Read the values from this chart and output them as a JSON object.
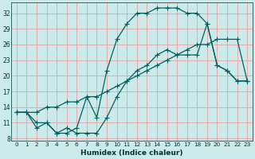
{
  "xlabel": "Humidex (Indice chaleur)",
  "bg_color": "#cceaea",
  "grid_color": "#e8a0a0",
  "line_color": "#006060",
  "xlim": [
    -0.5,
    23.5
  ],
  "ylim": [
    7.5,
    34
  ],
  "xticks": [
    0,
    1,
    2,
    3,
    4,
    5,
    6,
    7,
    8,
    9,
    10,
    11,
    12,
    13,
    14,
    15,
    16,
    17,
    18,
    19,
    20,
    21,
    22,
    23
  ],
  "yticks": [
    8,
    11,
    14,
    17,
    20,
    23,
    26,
    29,
    32
  ],
  "line1_x": [
    0,
    1,
    2,
    3,
    4,
    5,
    6,
    7,
    8,
    9,
    10,
    11,
    12,
    13,
    14,
    15,
    16,
    17,
    18,
    19,
    20,
    21,
    22,
    23
  ],
  "line1_y": [
    13,
    13,
    10,
    11,
    9,
    9,
    10,
    16,
    12,
    21,
    27,
    30,
    32,
    32,
    33,
    33,
    33,
    32,
    32,
    30,
    22,
    21,
    19,
    19
  ],
  "line2_x": [
    0,
    1,
    2,
    3,
    4,
    5,
    6,
    7,
    8,
    9,
    10,
    11,
    12,
    13,
    14,
    15,
    16,
    17,
    18,
    19,
    20,
    21,
    22,
    23
  ],
  "line2_y": [
    13,
    13,
    13,
    14,
    14,
    15,
    15,
    16,
    16,
    17,
    18,
    19,
    20,
    21,
    22,
    23,
    24,
    25,
    26,
    26,
    27,
    27,
    27,
    19
  ],
  "line3_x": [
    0,
    1,
    2,
    3,
    4,
    5,
    6,
    7,
    8,
    9,
    10,
    11,
    12,
    13,
    14,
    15,
    16,
    17,
    18,
    19,
    20,
    21,
    22,
    23
  ],
  "line3_y": [
    13,
    13,
    11,
    11,
    9,
    10,
    9,
    9,
    9,
    12,
    16,
    19,
    21,
    22,
    24,
    25,
    24,
    24,
    24,
    30,
    22,
    21,
    19,
    19
  ]
}
